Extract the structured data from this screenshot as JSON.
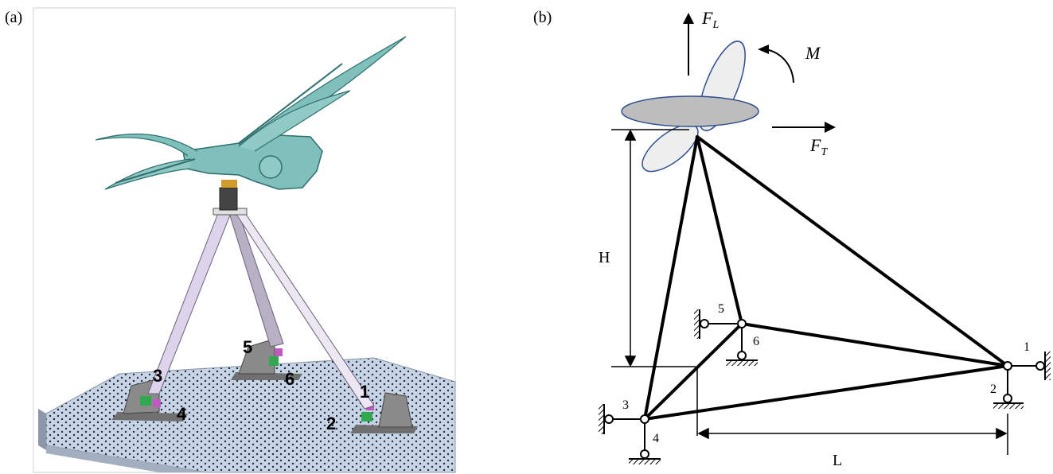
{
  "panels": {
    "a": {
      "label": "(a)",
      "platform_numbers": [
        "1",
        "2",
        "3",
        "4",
        "5",
        "6"
      ]
    },
    "b": {
      "label": "(b)",
      "forces": {
        "lift": "F",
        "lift_sub": "L",
        "thrust": "F",
        "thrust_sub": "T",
        "moment": "M"
      },
      "dimensions": {
        "height": "H",
        "length": "L"
      },
      "nodes": [
        "1",
        "2",
        "3",
        "4",
        "5",
        "6"
      ]
    }
  },
  "colors": {
    "wing": "#5fa8a6",
    "wing_dark": "#2f6f6d",
    "table": "#c7d4e6",
    "table_dots": "#1f2b3a",
    "strut": "#d9d2e3",
    "strut_edge": "#6b6078",
    "base": "#808080",
    "ellipse_fill": "#bdbdbd",
    "ellipse_edge": "#2f4f8f",
    "blade_fill": "#eeeeee"
  }
}
